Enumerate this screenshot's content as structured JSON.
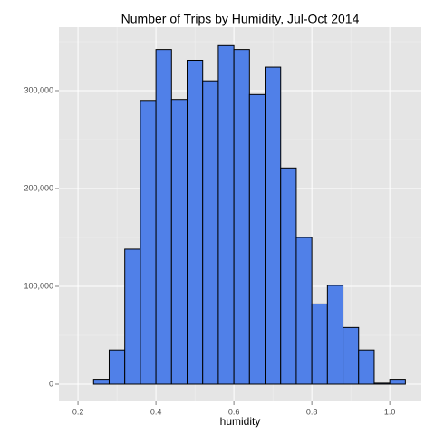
{
  "chart_data": {
    "type": "histogram",
    "title": "Number of Trips by Humidity, Jul-Oct 2014",
    "x_label": "humidity",
    "bins": [
      0.2,
      0.24,
      0.28,
      0.32,
      0.36,
      0.4,
      0.44,
      0.48,
      0.52,
      0.56,
      0.6,
      0.64,
      0.68,
      0.72,
      0.76,
      0.8,
      0.84,
      0.88,
      0.92,
      0.96,
      1.0,
      1.04
    ],
    "counts": [
      0,
      5000,
      35000,
      138000,
      290000,
      342000,
      291000,
      331000,
      310000,
      346000,
      342000,
      296000,
      324000,
      221000,
      150000,
      82000,
      101000,
      58000,
      35000,
      1000,
      5000
    ],
    "color": "#5080e8",
    "edgecolor": "#000000",
    "xlim": [
      0.151,
      1.081
    ],
    "ylim": [
      -17600,
      364800
    ],
    "xticks": [
      0.2,
      0.4,
      0.6,
      0.8,
      {
        "value": 1.0,
        "label": "1.0"
      }
    ],
    "yticks": [
      0,
      {
        "value": 100000,
        "label": "100,000"
      },
      {
        "value": 200000,
        "label": "200,000"
      },
      {
        "value": 300000,
        "label": "300,000"
      }
    ],
    "x_minor_ticks": [
      0.3,
      0.5,
      0.7,
      0.9
    ],
    "y_minor_ticks": [
      50000,
      150000,
      250000,
      350000
    ],
    "grid": true
  }
}
